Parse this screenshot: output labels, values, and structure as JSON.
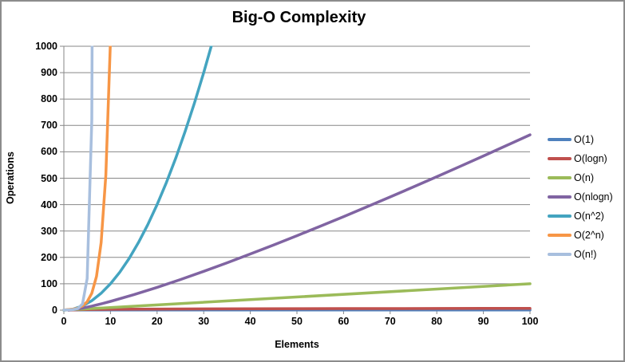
{
  "chart_data": {
    "type": "line",
    "title": "Big-O Complexity",
    "xlabel": "Elements",
    "ylabel": "Operations",
    "xlim": [
      0,
      100
    ],
    "ylim": [
      0,
      1000
    ],
    "x_ticks": [
      "0",
      "10",
      "20",
      "30",
      "40",
      "50",
      "60",
      "70",
      "80",
      "90",
      "100"
    ],
    "y_ticks": [
      "0",
      "100",
      "200",
      "300",
      "400",
      "500",
      "600",
      "700",
      "800",
      "900",
      "1000"
    ],
    "grid": "horizontal",
    "legend_position": "right",
    "colors": {
      "axis": "#878787",
      "grid": "#878787",
      "text": "#000000",
      "frame_border": "#8c8c8c",
      "background": "#ffffff"
    },
    "series": [
      {
        "name": "O(1)",
        "color": "#4F81BD",
        "points": [
          [
            0,
            1
          ],
          [
            100,
            1
          ]
        ]
      },
      {
        "name": "O(logn)",
        "color": "#C0504D",
        "points": [
          [
            1,
            0
          ],
          [
            2,
            1
          ],
          [
            3,
            1.6
          ],
          [
            4,
            2
          ],
          [
            5,
            2.3
          ],
          [
            6,
            2.6
          ],
          [
            8,
            3
          ],
          [
            10,
            3.3
          ],
          [
            15,
            3.9
          ],
          [
            20,
            4.3
          ],
          [
            30,
            4.9
          ],
          [
            40,
            5.3
          ],
          [
            50,
            5.6
          ],
          [
            60,
            5.9
          ],
          [
            70,
            6.1
          ],
          [
            80,
            6.3
          ],
          [
            90,
            6.5
          ],
          [
            100,
            6.6
          ]
        ]
      },
      {
        "name": "O(n)",
        "color": "#9BBB59",
        "points": [
          [
            0,
            0
          ],
          [
            100,
            100
          ]
        ]
      },
      {
        "name": "O(nlogn)",
        "color": "#8064A2",
        "points": [
          [
            1,
            0
          ],
          [
            2,
            2
          ],
          [
            4,
            8
          ],
          [
            6,
            15.5
          ],
          [
            8,
            24
          ],
          [
            10,
            33.2
          ],
          [
            15,
            58.6
          ],
          [
            20,
            86.4
          ],
          [
            25,
            116.1
          ],
          [
            30,
            147.2
          ],
          [
            35,
            179.5
          ],
          [
            40,
            212.9
          ],
          [
            45,
            247.2
          ],
          [
            50,
            282.2
          ],
          [
            55,
            318
          ],
          [
            60,
            354.4
          ],
          [
            65,
            391.4
          ],
          [
            70,
            429
          ],
          [
            75,
            467.1
          ],
          [
            80,
            505.8
          ],
          [
            85,
            544.8
          ],
          [
            90,
            584.3
          ],
          [
            95,
            624.2
          ],
          [
            100,
            664.4
          ]
        ]
      },
      {
        "name": "O(n^2)",
        "color": "#44A4C0",
        "points": [
          [
            0,
            0
          ],
          [
            2,
            4
          ],
          [
            4,
            16
          ],
          [
            6,
            36
          ],
          [
            8,
            64
          ],
          [
            10,
            100
          ],
          [
            12,
            144
          ],
          [
            14,
            196
          ],
          [
            16,
            256
          ],
          [
            18,
            324
          ],
          [
            20,
            400
          ],
          [
            22,
            484
          ],
          [
            24,
            576
          ],
          [
            26,
            676
          ],
          [
            28,
            784
          ],
          [
            30,
            900
          ],
          [
            32,
            1024
          ]
        ]
      },
      {
        "name": "O(2^n)",
        "color": "#F79646",
        "points": [
          [
            0,
            1
          ],
          [
            1,
            2
          ],
          [
            2,
            4
          ],
          [
            3,
            8
          ],
          [
            4,
            16
          ],
          [
            5,
            32
          ],
          [
            6,
            64
          ],
          [
            7,
            128
          ],
          [
            8,
            256
          ],
          [
            9,
            512
          ],
          [
            10,
            1024
          ]
        ]
      },
      {
        "name": "O(n!)",
        "color": "#A8BFDE",
        "points": [
          [
            0,
            1
          ],
          [
            1,
            1
          ],
          [
            2,
            2
          ],
          [
            3,
            6
          ],
          [
            4,
            24
          ],
          [
            5,
            120
          ],
          [
            6,
            720
          ],
          [
            7,
            5040
          ]
        ]
      }
    ]
  }
}
